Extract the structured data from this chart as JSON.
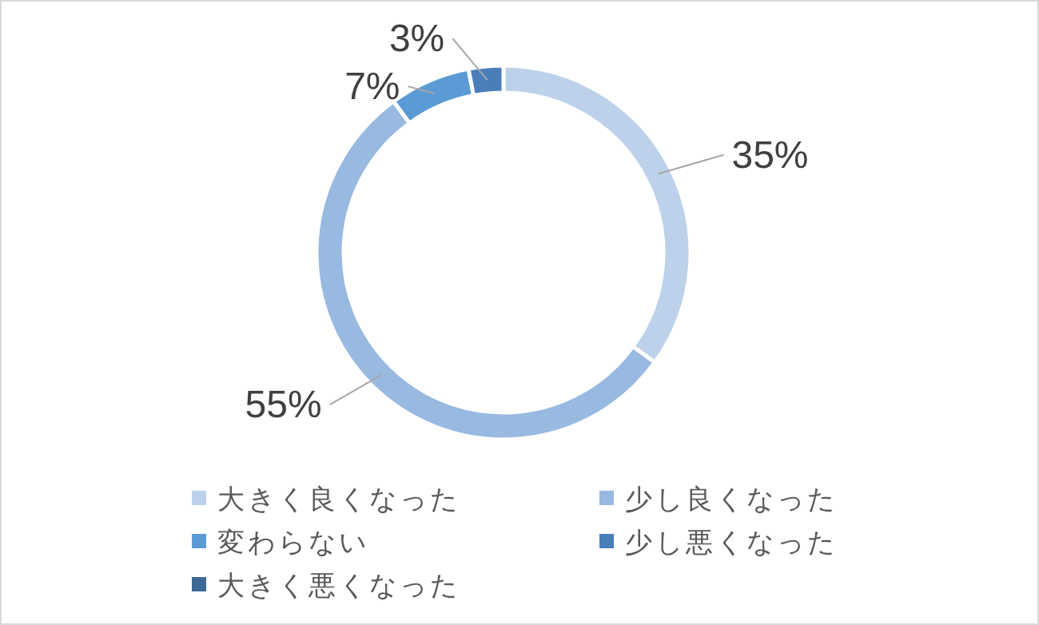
{
  "chart_data": {
    "type": "donut",
    "categories": [
      "大きく良くなった",
      "少し良くなった",
      "変わらない",
      "少し悪くなった",
      "大きく悪くなった"
    ],
    "values": [
      35,
      55,
      7,
      3,
      0
    ],
    "colors": [
      "#bdd1ea",
      "#98b9e0",
      "#5b9bd5",
      "#4a7ebb",
      "#3c6896"
    ],
    "value_labels": [
      "35%",
      "55%",
      "7%",
      "3%",
      null
    ],
    "legend": "bottom"
  }
}
